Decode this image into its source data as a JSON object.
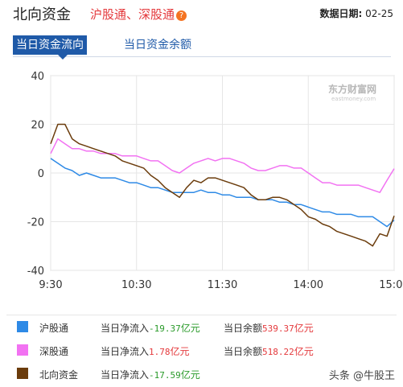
{
  "header": {
    "title": "北向资金",
    "subtitle": "沪股通、深股通",
    "date_label": "数据日期:",
    "date_value": "02-25"
  },
  "tabs": [
    {
      "label": "当日资金流向",
      "active": true
    },
    {
      "label": "当日资金余额",
      "active": false
    }
  ],
  "logo": {
    "text": "东方财富网",
    "subtext": "eastmoney.com"
  },
  "legend": [
    {
      "name": "沪股通",
      "color": "#2e8ae6",
      "flow_label": "当日净流入",
      "flow_value": "-19.37",
      "flow_unit": "亿元",
      "balance_label": "当日余额",
      "balance_value": "539.37",
      "balance_unit": "亿元"
    },
    {
      "name": "深股通",
      "color": "#f272f2",
      "flow_label": "当日净流入",
      "flow_value": "1.78",
      "flow_unit": "亿元",
      "balance_label": "当日余额",
      "balance_value": "518.22",
      "balance_unit": "亿元"
    },
    {
      "name": "北向资金",
      "color": "#6b3c0c",
      "flow_label": "当日净流入",
      "flow_value": "-17.59",
      "flow_unit": "亿元",
      "balance_label": "",
      "balance_value": "",
      "balance_unit": ""
    }
  ],
  "footer_watermark": "头条 @牛股王",
  "chart_data": {
    "type": "line",
    "title": "",
    "xlabel": "",
    "ylabel": "",
    "ylim": [
      -40,
      40
    ],
    "yticks": [
      40,
      20,
      0,
      -20,
      -40
    ],
    "xticks": [
      "9:30",
      "10:30",
      "11:30",
      "14:00",
      "15:00"
    ],
    "x_minutes": [
      0,
      5,
      10,
      15,
      20,
      25,
      30,
      35,
      40,
      45,
      50,
      55,
      60,
      65,
      70,
      75,
      80,
      85,
      90,
      95,
      100,
      105,
      110,
      115,
      120,
      125,
      130,
      135,
      140,
      145,
      150,
      155,
      160,
      165,
      170,
      175,
      180,
      185,
      190,
      195,
      200,
      205,
      210,
      215,
      220,
      225,
      230,
      235,
      240
    ],
    "grid": true,
    "series": [
      {
        "name": "沪股通",
        "color": "#2e8ae6",
        "values": [
          6,
          4,
          2,
          1,
          -1,
          0,
          -1,
          -2,
          -2,
          -2,
          -3,
          -4,
          -4,
          -5,
          -6,
          -6,
          -7,
          -8,
          -8,
          -8,
          -8,
          -7,
          -8,
          -8,
          -9,
          -9,
          -10,
          -10,
          -10,
          -11,
          -11,
          -11,
          -12,
          -12,
          -13,
          -13,
          -14,
          -15,
          -16,
          -16,
          -17,
          -17,
          -17,
          -18,
          -18,
          -18,
          -20,
          -22,
          -19.37
        ]
      },
      {
        "name": "深股通",
        "color": "#f272f2",
        "values": [
          8,
          14,
          12,
          10,
          10,
          9,
          9,
          8,
          8,
          8,
          7,
          7,
          7,
          6,
          5,
          5,
          3,
          1,
          0,
          2,
          4,
          5,
          6,
          5,
          6,
          6,
          5,
          4,
          2,
          1,
          1,
          2,
          3,
          3,
          2,
          2,
          0,
          -2,
          -4,
          -4,
          -5,
          -5,
          -5,
          -5,
          -6,
          -7,
          -8,
          -3,
          1.78
        ]
      },
      {
        "name": "北向资金",
        "color": "#6b3c0c",
        "values": [
          12,
          20,
          20,
          14,
          12,
          11,
          10,
          9,
          8,
          7,
          5,
          4,
          3,
          2,
          -1,
          -3,
          -6,
          -8,
          -10,
          -6,
          -3,
          -4,
          -2,
          -2,
          -3,
          -4,
          -5,
          -6,
          -9,
          -11,
          -11,
          -10,
          -10,
          -11,
          -13,
          -15,
          -18,
          -19,
          -21,
          -22,
          -24,
          -25,
          -26,
          -27,
          -28,
          -30,
          -25,
          -26,
          -17.59
        ]
      }
    ]
  }
}
